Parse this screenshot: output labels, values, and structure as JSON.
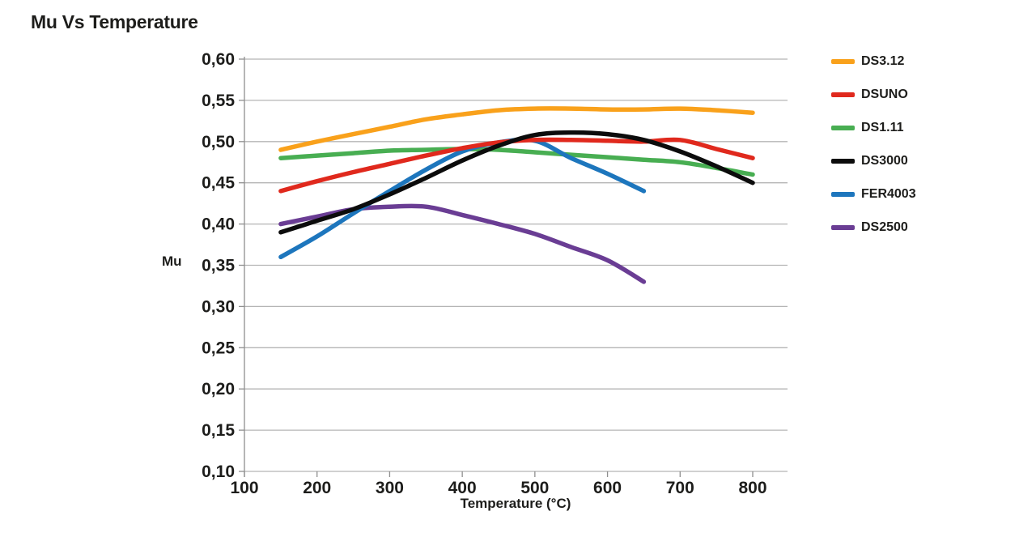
{
  "title": "Mu Vs Temperature",
  "chart_data": {
    "type": "line",
    "title": "Mu Vs Temperature",
    "xlabel": "Temperature (°C)",
    "ylabel": "Mu",
    "xlim": [
      100,
      850
    ],
    "ylim": [
      0.1,
      0.6
    ],
    "grid": "horizontal",
    "legend_position": "right",
    "x_ticks": [
      100,
      200,
      300,
      400,
      500,
      600,
      700,
      800
    ],
    "x_tick_labels": [
      "100",
      "200",
      "300",
      "400",
      "500",
      "600",
      "700",
      "800"
    ],
    "y_ticks": [
      0.6,
      0.55,
      0.5,
      0.45,
      0.4,
      0.35,
      0.3,
      0.25,
      0.2,
      0.15,
      0.1
    ],
    "y_tick_labels": [
      "0,60",
      "0,55",
      "0,50",
      "0,45",
      "0,40",
      "0,35",
      "0,30",
      "0,25",
      "0,20",
      "0,15",
      "0,10"
    ],
    "draw_order": [
      "DS2500",
      "DS3.12",
      "DS1.11",
      "FER4003",
      "DSUNO",
      "DS3000"
    ],
    "series": [
      {
        "name": "DS3.12",
        "color": "#F9A11B",
        "x": [
          150,
          200,
          250,
          300,
          350,
          400,
          450,
          500,
          550,
          600,
          650,
          700,
          750,
          800
        ],
        "y": [
          0.49,
          0.5,
          0.509,
          0.518,
          0.527,
          0.533,
          0.538,
          0.54,
          0.54,
          0.539,
          0.539,
          0.54,
          0.538,
          0.535
        ]
      },
      {
        "name": "DSUNO",
        "color": "#E0291D",
        "x": [
          150,
          200,
          250,
          300,
          350,
          400,
          450,
          500,
          550,
          600,
          650,
          700,
          750,
          800
        ],
        "y": [
          0.44,
          0.452,
          0.463,
          0.473,
          0.483,
          0.492,
          0.499,
          0.502,
          0.502,
          0.501,
          0.5,
          0.502,
          0.491,
          0.48
        ]
      },
      {
        "name": "DS1.11",
        "color": "#48AE52",
        "x": [
          150,
          200,
          250,
          300,
          350,
          400,
          450,
          500,
          550,
          600,
          650,
          700,
          750,
          800
        ],
        "y": [
          0.48,
          0.483,
          0.486,
          0.489,
          0.49,
          0.491,
          0.49,
          0.487,
          0.484,
          0.481,
          0.478,
          0.475,
          0.468,
          0.46
        ]
      },
      {
        "name": "DS3000",
        "color": "#0c0c0c",
        "x": [
          150,
          200,
          250,
          300,
          350,
          400,
          450,
          500,
          550,
          600,
          650,
          700,
          750,
          800
        ],
        "y": [
          0.39,
          0.404,
          0.418,
          0.436,
          0.456,
          0.477,
          0.495,
          0.508,
          0.511,
          0.509,
          0.502,
          0.488,
          0.47,
          0.45
        ]
      },
      {
        "name": "FER4003",
        "color": "#1D76BD",
        "x": [
          150,
          200,
          250,
          300,
          350,
          400,
          450,
          500,
          550,
          600,
          650
        ],
        "y": [
          0.36,
          0.385,
          0.413,
          0.44,
          0.466,
          0.488,
          0.499,
          0.501,
          0.48,
          0.461,
          0.44
        ]
      },
      {
        "name": "DS2500",
        "color": "#6A3D94",
        "x": [
          150,
          200,
          250,
          300,
          350,
          400,
          450,
          500,
          550,
          600,
          650
        ],
        "y": [
          0.4,
          0.409,
          0.418,
          0.421,
          0.421,
          0.411,
          0.4,
          0.388,
          0.372,
          0.356,
          0.33
        ]
      }
    ],
    "colors": {
      "gridline": "#b5b5b5",
      "axis": "#8f8f8f",
      "text": "#1d1d1b"
    }
  }
}
